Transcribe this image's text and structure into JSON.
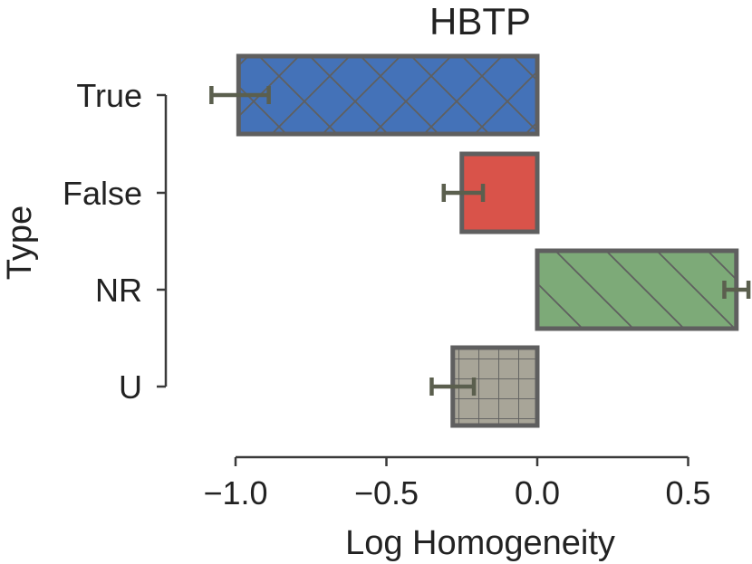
{
  "chart_data": {
    "type": "bar",
    "orientation": "horizontal",
    "title": "HBTP",
    "xlabel": "Log Homogeneity",
    "ylabel": "Type",
    "xlim": [
      -1.0,
      0.5
    ],
    "xticks": [
      -1.0,
      -0.5,
      0.0,
      0.5
    ],
    "xtick_labels": [
      "−1.0",
      "−0.5",
      "0.0",
      "0.5"
    ],
    "categories": [
      "True",
      "False",
      "NR",
      "U"
    ],
    "values": [
      -0.99,
      -0.25,
      0.66,
      -0.28
    ],
    "error_low": [
      -1.08,
      -0.31,
      0.62,
      -0.35
    ],
    "error_high": [
      -0.89,
      -0.18,
      0.7,
      -0.21
    ],
    "colors": [
      "#4472b8",
      "#d9534a",
      "#7daa78",
      "#a8a598"
    ],
    "hatches": [
      "crosshatch",
      "solid",
      "diagonal",
      "grid"
    ],
    "edge_color": "#5f5f5f",
    "error_color": "#5b5f4e",
    "grid": false,
    "legend": "none"
  }
}
